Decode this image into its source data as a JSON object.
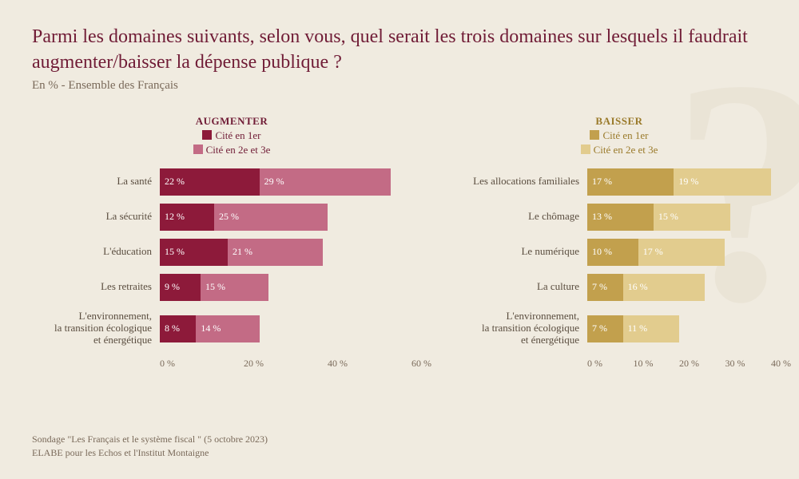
{
  "title": "Parmi les domaines suivants, selon vous, quel serait les trois domaines sur lesquels il faudrait augmenter/baisser la dépense publique ?",
  "subtitle": "En % - Ensemble des Français",
  "source_line1": "Sondage \"Les Français et le système fiscal \" (5 octobre 2023)",
  "source_line2": "ELABE pour les Echos et l'Institut Montaigne",
  "colors": {
    "title": "#701c36",
    "text": "#7a6a5a",
    "background": "#f0ebe0",
    "watermark": "#eae4d6",
    "augmenter_primary": "#8d1a3a",
    "augmenter_secondary": "#c36b85",
    "baisser_primary": "#c2a04d",
    "baisser_secondary": "#e2cc8e"
  },
  "augmenter": {
    "heading": "AUGMENTER",
    "legend1": "Cité en 1er",
    "legend2": "Cité en 2e et 3e",
    "heading_color": "#701c36",
    "xmax": 60,
    "ticks": [
      "0 %",
      "20 %",
      "40 %",
      "60 %"
    ],
    "rows": [
      {
        "label": "La santé",
        "v1": 22,
        "v2": 29,
        "t1": "22 %",
        "t2": "29 %",
        "tall": false
      },
      {
        "label": "La sécurité",
        "v1": 12,
        "v2": 25,
        "t1": "12 %",
        "t2": "25 %",
        "tall": false
      },
      {
        "label": "L'éducation",
        "v1": 15,
        "v2": 21,
        "t1": "15 %",
        "t2": "21 %",
        "tall": false
      },
      {
        "label": "Les retraites",
        "v1": 9,
        "v2": 15,
        "t1": "9 %",
        "t2": "15 %",
        "tall": false
      },
      {
        "label": "L'environnement,\nla transition écologique\net énergétique",
        "v1": 8,
        "v2": 14,
        "t1": "8 %",
        "t2": "14 %",
        "tall": true
      }
    ]
  },
  "baisser": {
    "heading": "BAISSER",
    "legend1": "Cité en 1er",
    "legend2": "Cité en 2e et 3e",
    "heading_color": "#9a7a2a",
    "xmax": 40,
    "ticks": [
      "0 %",
      "10 %",
      "20 %",
      "30 %",
      "40 %"
    ],
    "rows": [
      {
        "label": "Les allocations familiales",
        "v1": 17,
        "v2": 19,
        "t1": "17 %",
        "t2": "19 %",
        "tall": false
      },
      {
        "label": "Le chômage",
        "v1": 13,
        "v2": 15,
        "t1": "13 %",
        "t2": "15 %",
        "tall": false
      },
      {
        "label": "Le numérique",
        "v1": 10,
        "v2": 17,
        "t1": "10 %",
        "t2": "17 %",
        "tall": false
      },
      {
        "label": "La culture",
        "v1": 7,
        "v2": 16,
        "t1": "7 %",
        "t2": "16 %",
        "tall": false
      },
      {
        "label": "L'environnement,\nla transition écologique\net énergétique",
        "v1": 7,
        "v2": 11,
        "t1": "7 %",
        "t2": "11 %",
        "tall": true
      }
    ]
  }
}
